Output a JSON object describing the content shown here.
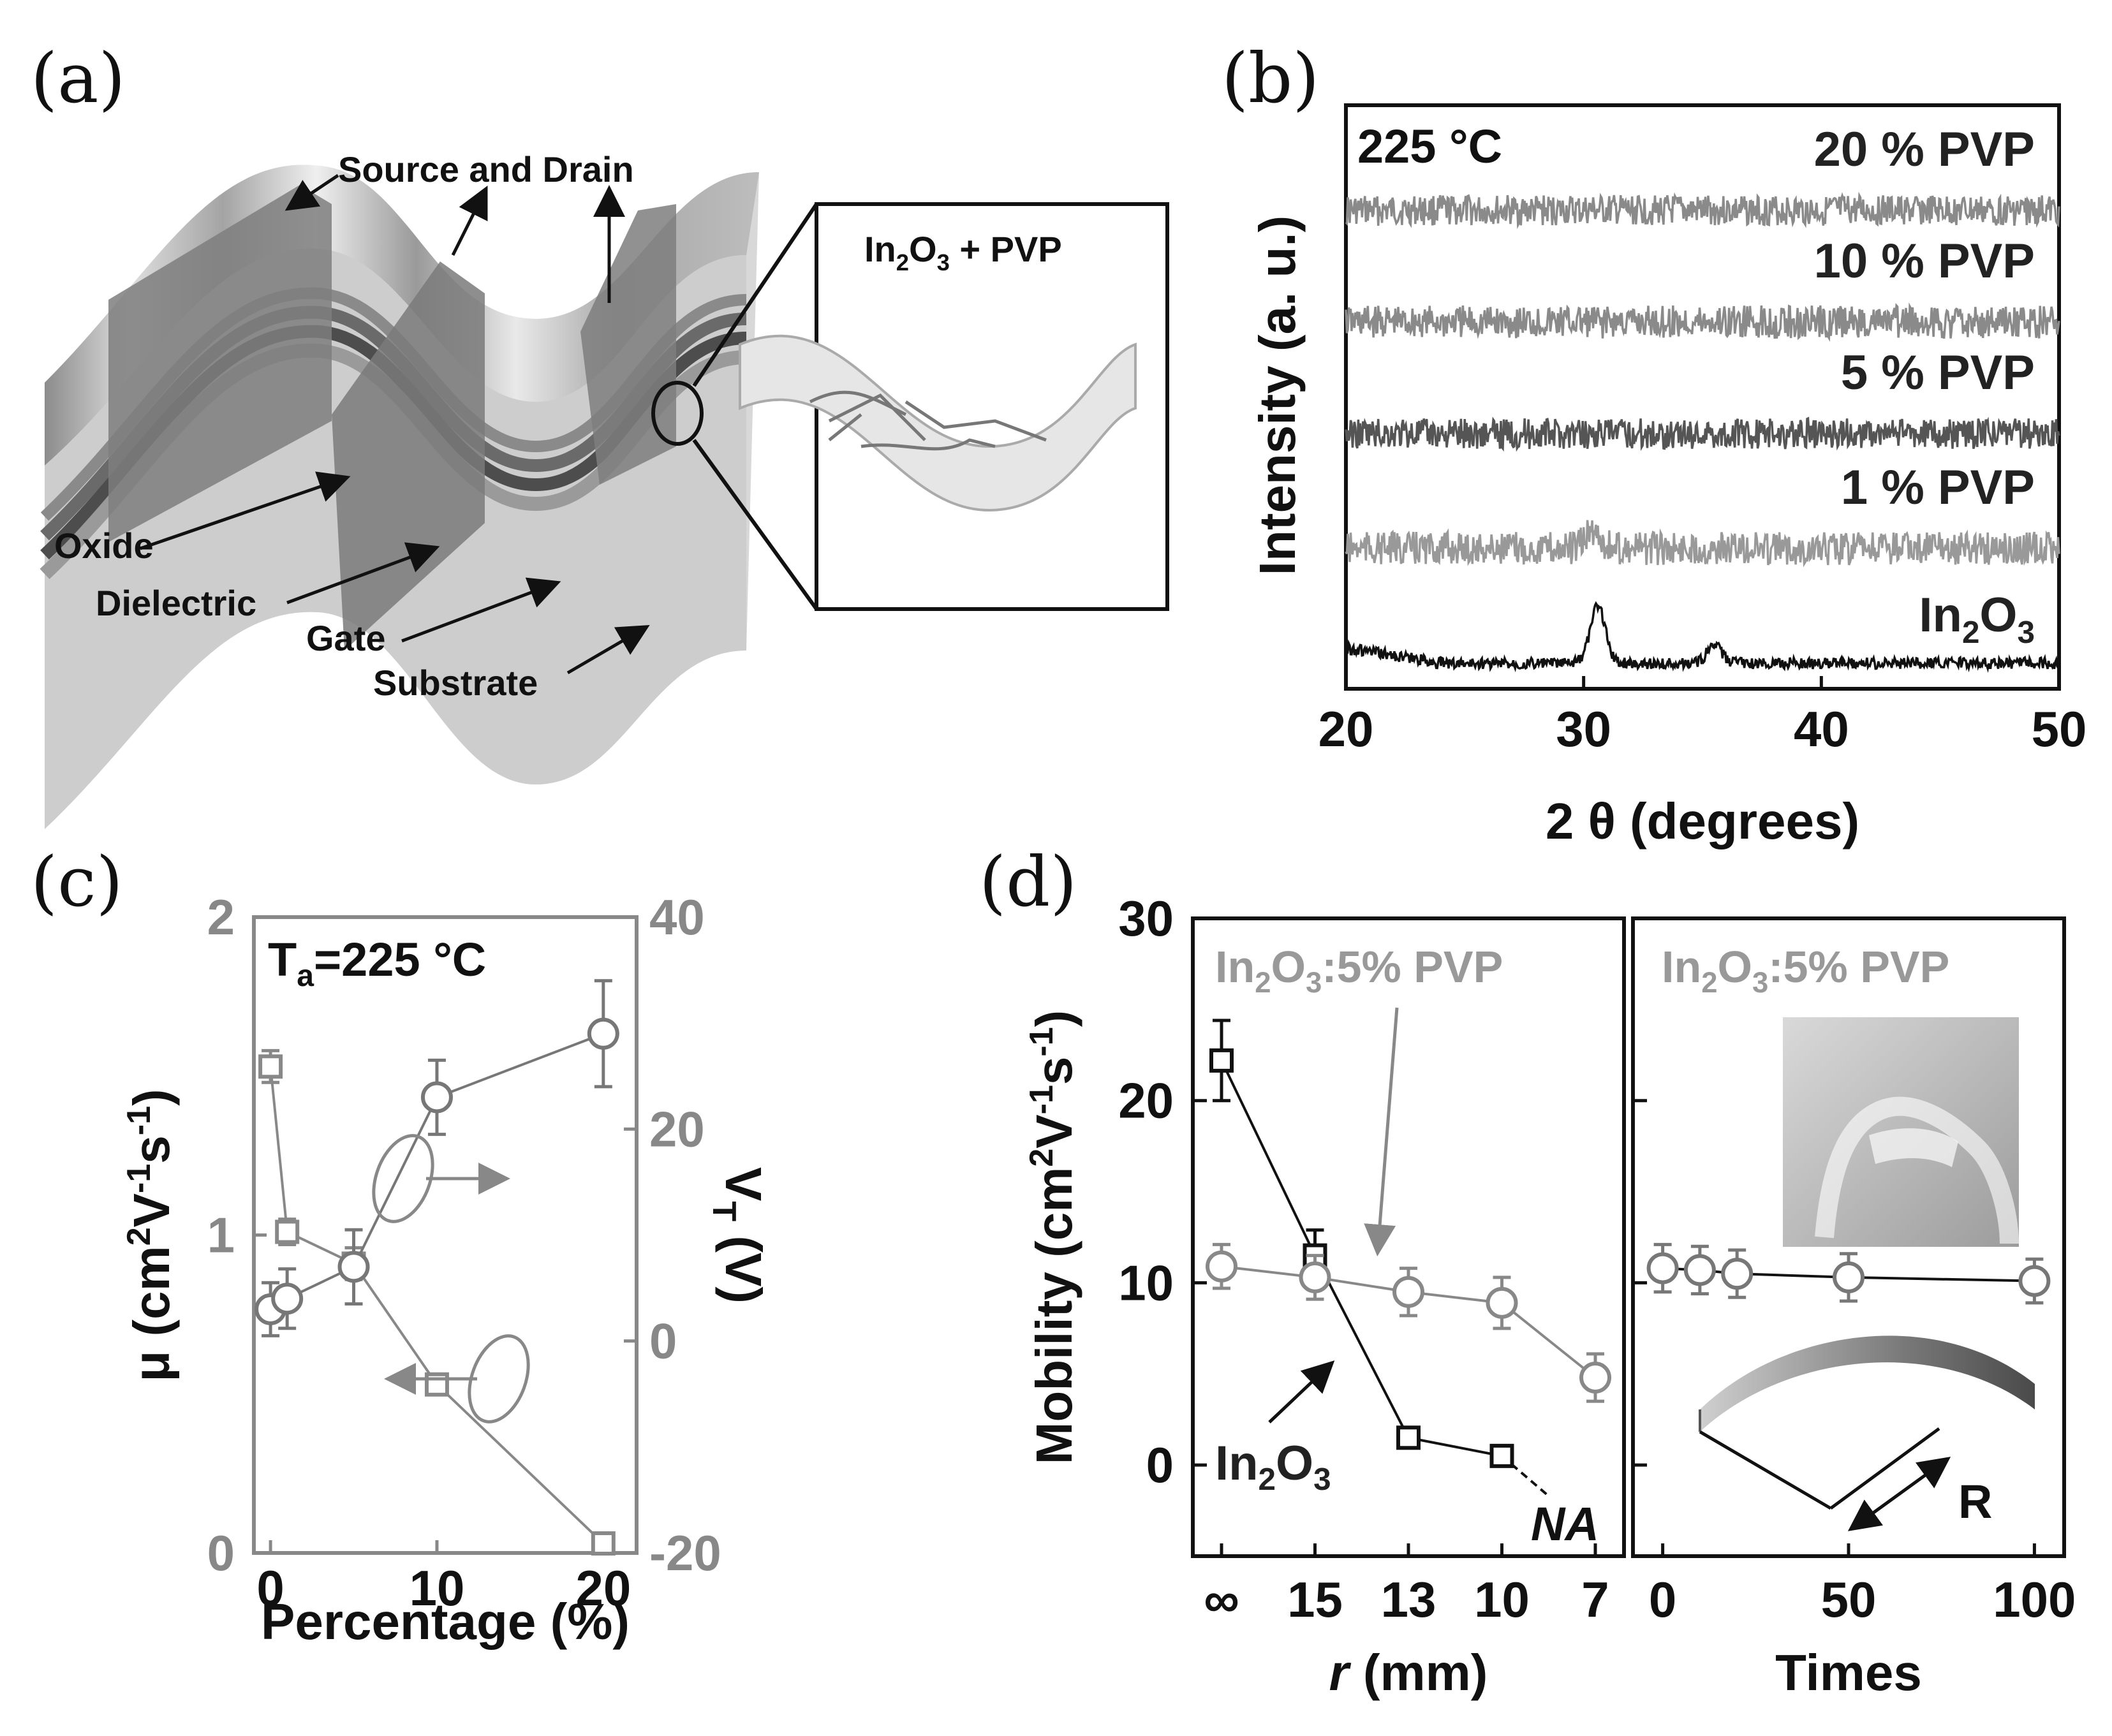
{
  "panels": {
    "a": {
      "label": "(a)",
      "labels": {
        "source_drain": "Source and Drain",
        "oxide": "Oxide",
        "dielectric": "Dielectric",
        "gate": "Gate",
        "substrate": "Substrate",
        "inset_main": "In",
        "inset_sub1": "2",
        "inset_mid": "O",
        "inset_sub2": "3",
        "inset_tail": " + PVP"
      }
    },
    "b": {
      "label": "(b)"
    },
    "c": {
      "label": "(c)"
    },
    "d": {
      "label": "(d)"
    }
  },
  "chart_data": [
    {
      "id": "b",
      "type": "line",
      "xlabel": "2 θ (degrees)",
      "ylabel": "Intensity (a. u.)",
      "xlim": [
        20,
        50
      ],
      "xticks": [
        "20",
        "30",
        "40",
        "50"
      ],
      "annotation": "225 °C",
      "series": [
        {
          "name": "20 % PVP",
          "color": "#8a8a8a",
          "offset": 4,
          "peaks": []
        },
        {
          "name": "10 % PVP",
          "color": "#8a8a8a",
          "offset": 3,
          "peaks": []
        },
        {
          "name": "5 % PVP",
          "color": "#555555",
          "offset": 2,
          "peaks": []
        },
        {
          "name": "1 % PVP",
          "color": "#999999",
          "offset": 1,
          "peaks": [
            [
              30.4,
              0.3
            ]
          ]
        },
        {
          "name_main": "In",
          "name_sub1": "2",
          "name_mid": "O",
          "name_sub2": "3",
          "color": "#111111",
          "offset": 0,
          "peaks": [
            [
              30.6,
              1.0
            ],
            [
              35.5,
              0.3
            ]
          ]
        }
      ]
    },
    {
      "id": "c",
      "type": "scatter",
      "xlabel": "Percentage (%)",
      "ylabel_left_main": "μ (cm",
      "ylabel_left_rest": "V",
      "ylabel_left_tail": "s",
      "ylabel_right_main": "V",
      "ylabel_right_sub": "T",
      "ylabel_right_tail": " (V)",
      "xlim": [
        -1,
        22
      ],
      "ylim_left": [
        0,
        2
      ],
      "ylim_right": [
        -20,
        40
      ],
      "xticks": [
        "0",
        "10",
        "20"
      ],
      "yticks_left": [
        "0",
        "1",
        "2"
      ],
      "yticks_right": [
        "-20",
        "0",
        "20",
        "40"
      ],
      "annotation_main": "T",
      "annotation_sub": "a",
      "annotation_tail": "=225 °C",
      "mobility": {
        "x": [
          0,
          1,
          5,
          10,
          20
        ],
        "y": [
          1.53,
          1.01,
          0.91,
          0.53,
          0.03
        ],
        "err": [
          0.05,
          0.04,
          0.05,
          0.03,
          0.02
        ],
        "axis": "left",
        "marker": "square",
        "color": "#888888"
      },
      "vt": {
        "x": [
          0,
          1,
          5,
          10,
          20
        ],
        "y": [
          3,
          4,
          7,
          23,
          29
        ],
        "err": [
          2.5,
          2.8,
          3.5,
          3.5,
          5
        ],
        "axis": "right",
        "marker": "circle",
        "color": "#777777"
      }
    },
    {
      "id": "d-left",
      "type": "scatter",
      "xlabel_main": "r",
      "xlabel_tail": " (mm)",
      "ylabel_main": "Mobility (cm",
      "ylabel_rest": "V",
      "ylabel_tail": "s",
      "ylim": [
        -5,
        30
      ],
      "yticks": [
        "0",
        "10",
        "20",
        "30"
      ],
      "categories": [
        "∞",
        "15",
        "13",
        "10",
        "7"
      ],
      "series": [
        {
          "name_main": "In",
          "name_sub1": "2",
          "name_mid": "O",
          "name_sub2": "3",
          "values": [
            22.2,
            11.5,
            1.5,
            0.5,
            null
          ],
          "err": [
            2.2,
            1.4,
            0.3,
            0.3,
            null
          ],
          "marker": "square",
          "color": "#111111"
        },
        {
          "name_main": "In",
          "name_sub1": "2",
          "name_mid": "O",
          "name_sub2": "3",
          "name_tail": ":5% PVP",
          "values": [
            10.9,
            10.3,
            9.5,
            8.9,
            4.8
          ],
          "err": [
            1.2,
            1.2,
            1.3,
            1.4,
            1.3
          ],
          "marker": "circle",
          "color": "#888888"
        }
      ],
      "na_label": "NA"
    },
    {
      "id": "d-right",
      "type": "scatter",
      "xlabel": "Times",
      "xlim": [
        -8,
        108
      ],
      "xticks": [
        "0",
        "50",
        "100"
      ],
      "series": [
        {
          "name_main": "In",
          "name_sub1": "2",
          "name_mid": "O",
          "name_sub2": "3",
          "name_tail": ":5% PVP",
          "x": [
            0,
            10,
            20,
            50,
            100
          ],
          "values": [
            10.8,
            10.7,
            10.5,
            10.3,
            10.1
          ],
          "err": [
            1.3,
            1.3,
            1.3,
            1.3,
            1.2
          ],
          "marker": "circle",
          "color": "#777777"
        }
      ],
      "r_label": "R"
    }
  ]
}
